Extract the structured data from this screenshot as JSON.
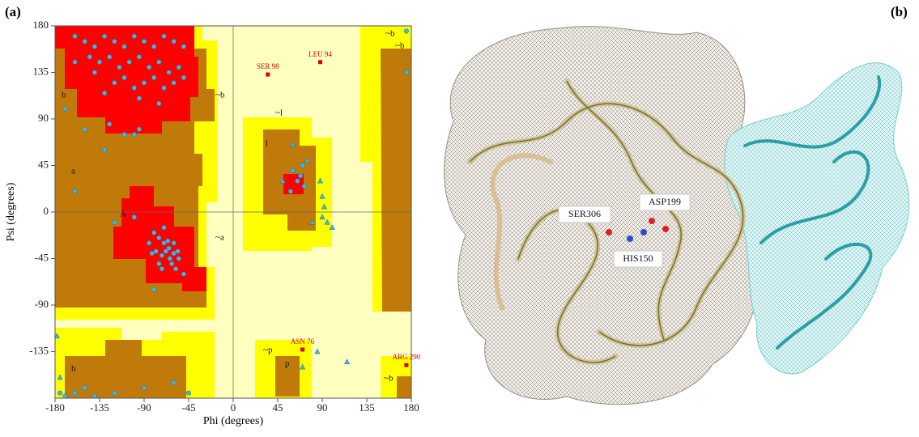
{
  "panels": {
    "a": "(a)",
    "b": "(b)"
  },
  "chart_data": {
    "type": "scatter",
    "xlabel": "Phi (degrees)",
    "ylabel": "Psi (degrees)",
    "xlim": [
      -180,
      180
    ],
    "ylim": [
      -180,
      180
    ],
    "xticks": [
      -180,
      -135,
      -90,
      -45,
      0,
      45,
      90,
      135,
      180
    ],
    "yticks": [
      -135,
      -90,
      -45,
      0,
      45,
      90,
      135,
      180
    ],
    "region_labels": [
      "b",
      "a",
      "A",
      "~b",
      "~l",
      "l",
      "~a",
      "~p",
      "p",
      "b",
      "~b",
      "~b",
      "~b"
    ],
    "series": [
      {
        "marker": "circle",
        "color": "#3fb6e0",
        "x": [
          -160,
          -150,
          -140,
          -130,
          -120,
          -110,
          -100,
          -90,
          -80,
          -70,
          -60,
          -50,
          -145,
          -135,
          -125,
          -115,
          -105,
          -95,
          -85,
          -75,
          -65,
          -55,
          -120,
          -110,
          -100,
          -90,
          -80,
          -70,
          -60,
          -130,
          -95,
          -75,
          -140,
          -50,
          -160,
          -150,
          -125,
          -110,
          -100,
          -95,
          -130,
          -160,
          -120,
          -100,
          -80,
          -175,
          -170,
          -160,
          -150,
          -140,
          -120,
          -90,
          -60,
          -45,
          -170,
          175,
          175,
          -80,
          -75,
          -70,
          -65,
          -60,
          -55,
          -85,
          -78,
          -72,
          -66,
          -62,
          -58,
          -70,
          -75,
          -64,
          -68,
          -60,
          -56,
          -82,
          -72,
          -50,
          60,
          65,
          70,
          58,
          72,
          68
        ],
        "values": [
          170,
          165,
          160,
          170,
          165,
          160,
          170,
          165,
          160,
          170,
          165,
          160,
          150,
          145,
          150,
          140,
          145,
          150,
          140,
          145,
          135,
          140,
          125,
          130,
          120,
          125,
          130,
          120,
          125,
          115,
          110,
          105,
          135,
          130,
          145,
          80,
          85,
          75,
          75,
          80,
          60,
          20,
          -10,
          -5,
          -75,
          -175,
          -178,
          -175,
          -170,
          -178,
          -175,
          -170,
          -165,
          -175,
          100,
          135,
          175,
          -20,
          -25,
          -30,
          -35,
          -40,
          -45,
          -30,
          -38,
          -42,
          -28,
          -50,
          -55,
          -15,
          -50,
          -45,
          -38,
          -30,
          -38,
          -40,
          -55,
          -60,
          40,
          30,
          45,
          20,
          25,
          35
        ]
      },
      {
        "marker": "triangle",
        "color": "#3fb6e0",
        "x": [
          88,
          90,
          92,
          80,
          95,
          100,
          90,
          75,
          60,
          85,
          70,
          115,
          -175,
          -178,
          50
        ],
        "values": [
          30,
          15,
          5,
          -10,
          -10,
          -15,
          -5,
          50,
          65,
          -135,
          -150,
          -145,
          -160,
          -120,
          30
        ]
      }
    ],
    "outliers": {
      "color": "#e00000",
      "labels": [
        "SER 98",
        "LEU 94",
        "ASN 76",
        "ARG 290"
      ],
      "x": [
        35,
        88,
        70,
        175
      ],
      "values": [
        133,
        145,
        -133,
        -148
      ]
    }
  },
  "structure": {
    "labels": [
      "SER306",
      "ASP199",
      "HIS150"
    ]
  }
}
